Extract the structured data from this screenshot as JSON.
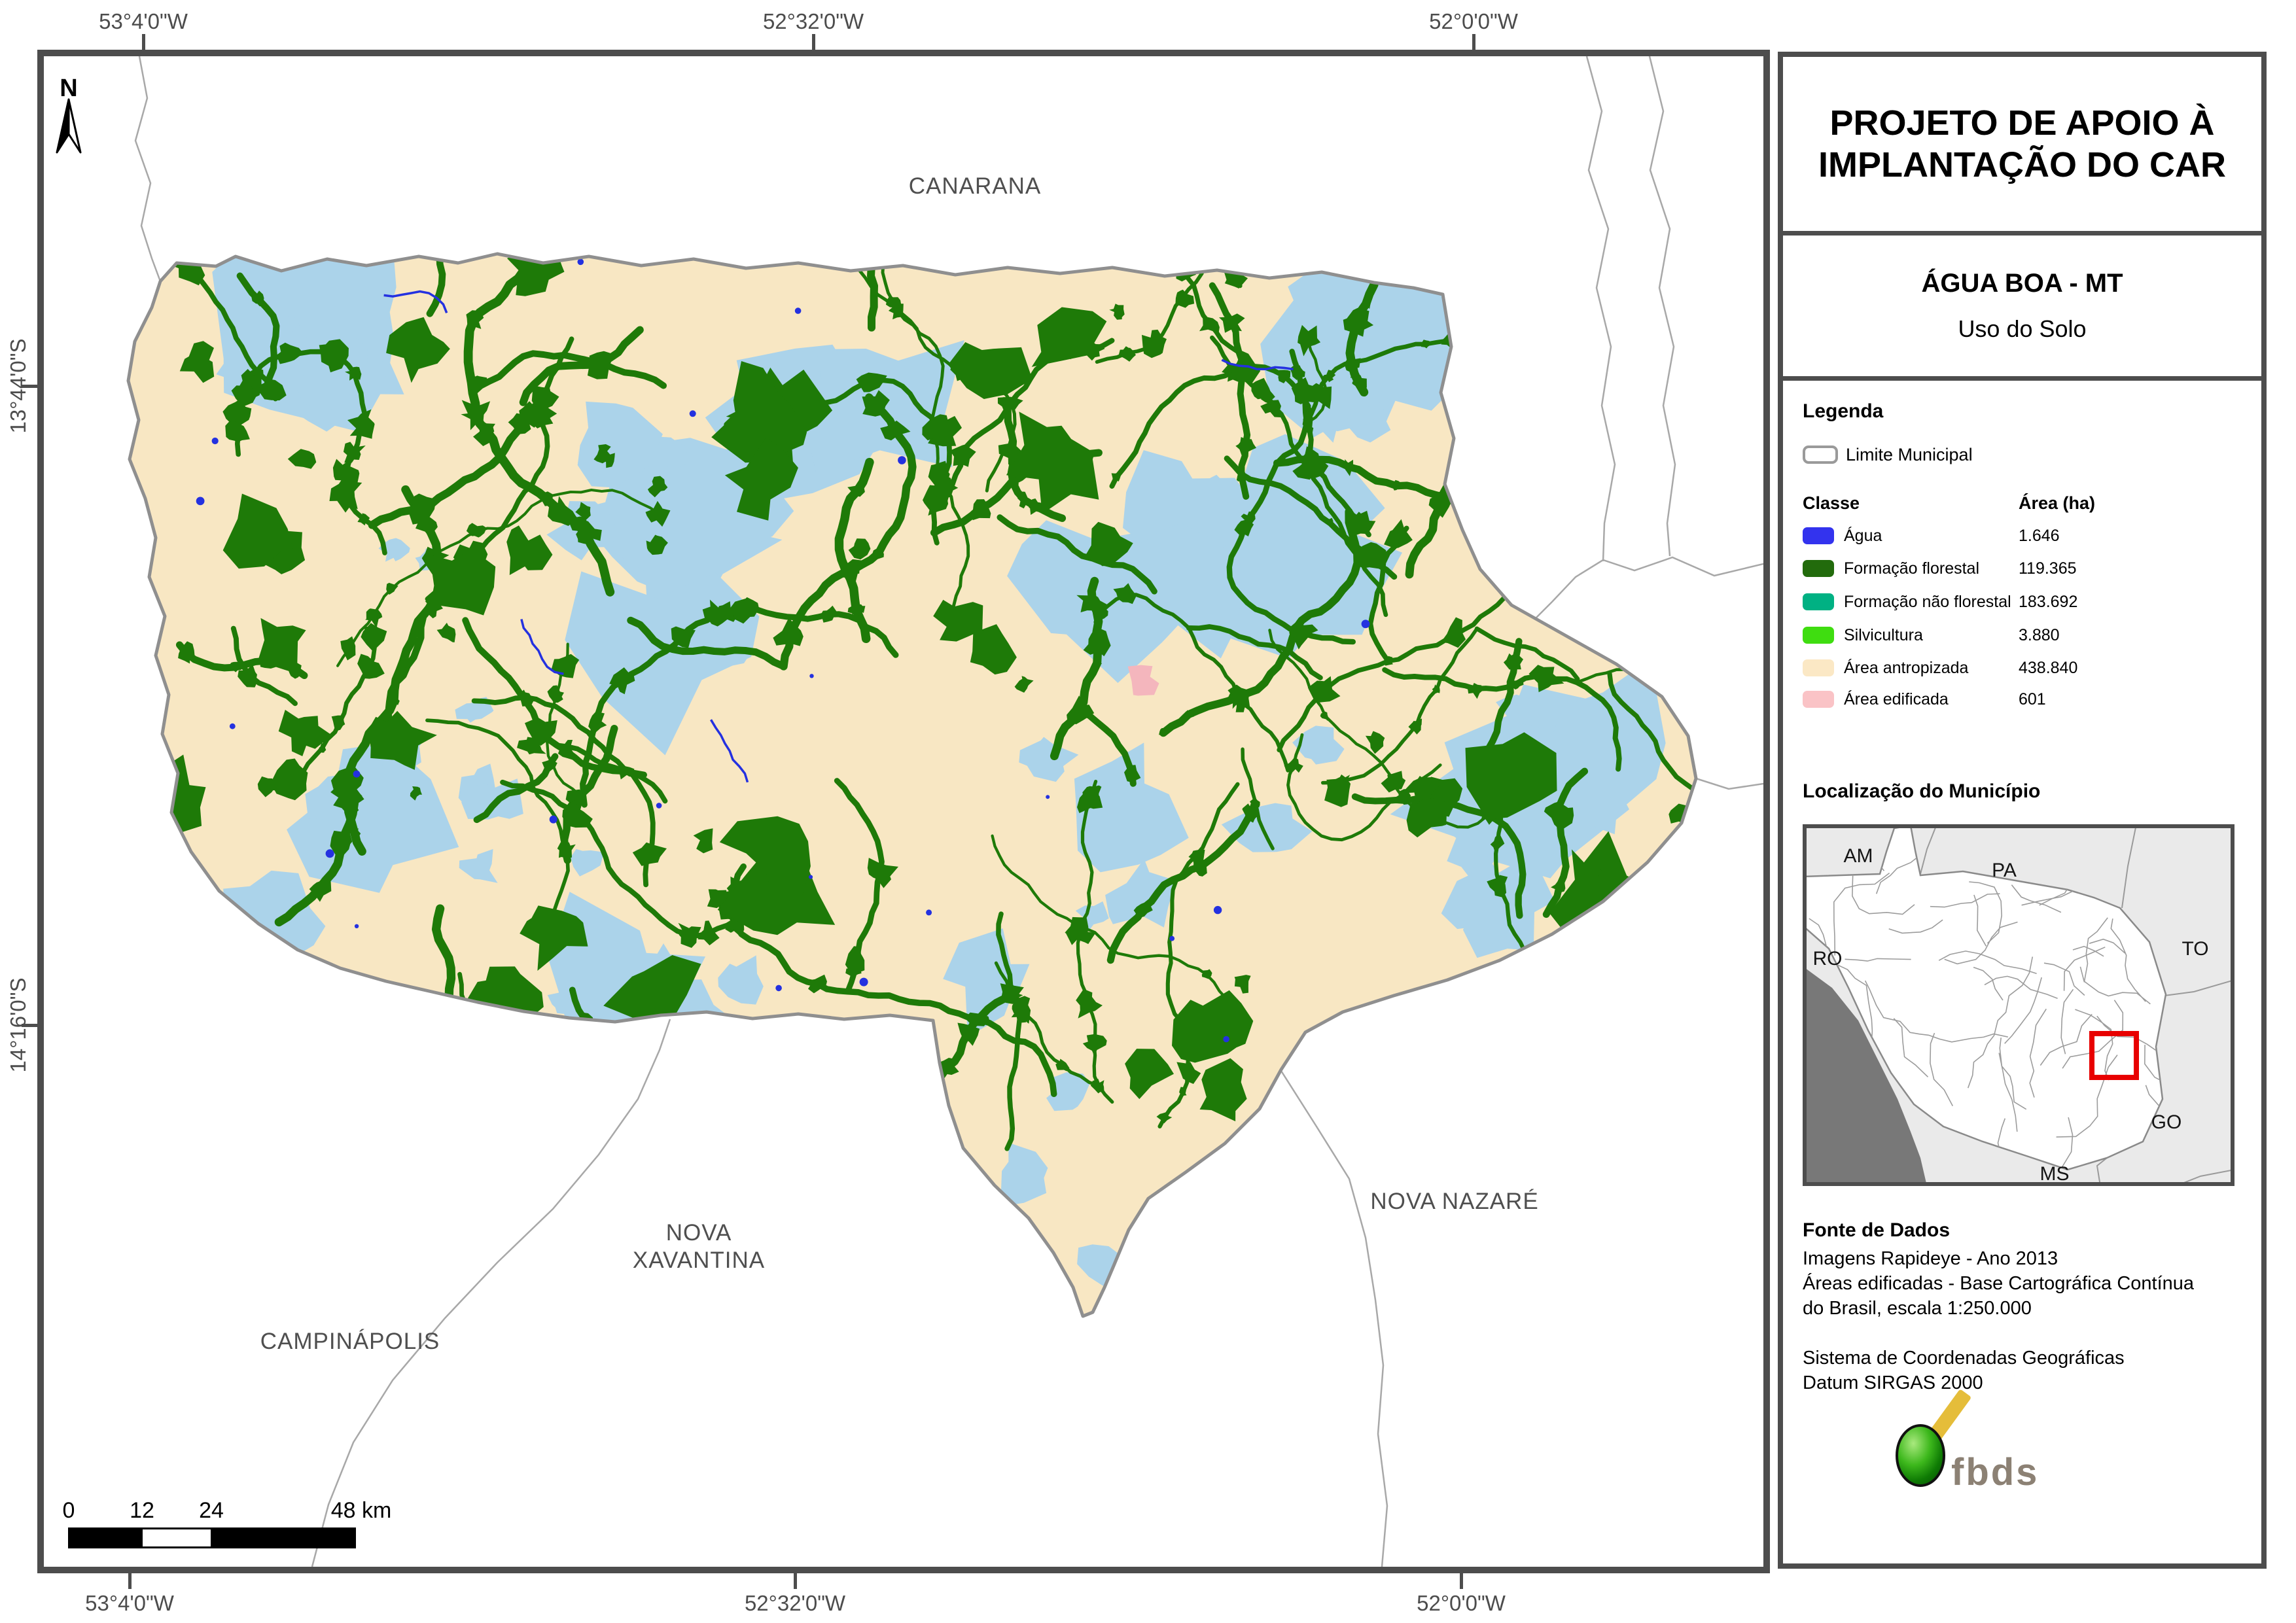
{
  "page": {
    "background": "#ffffff",
    "frame_color": "#4d4d4d"
  },
  "map": {
    "labels": {
      "canarana": "CANARANA",
      "nova_xavantina_line1": "NOVA",
      "nova_xavantina_line2": "XAVANTINA",
      "campinapolis": "CAMPINÁPOLIS",
      "nova_nazare": "NOVA NAZARÉ"
    },
    "north_label": "N",
    "coordinates": {
      "top": [
        "53°4'0\"W",
        "52°32'0\"W",
        "52°0'0\"W"
      ],
      "bottom": [
        "53°4'0\"W",
        "52°32'0\"W",
        "52°0'0\"W"
      ],
      "left": [
        "13°44'0\"S",
        "14°16'0\"S"
      ]
    },
    "scalebar_labels": [
      "0",
      "12",
      "24",
      "48 km"
    ],
    "colors": {
      "area_antropizada": "#f8e7c3",
      "formacao_florestal": "#1e7a08",
      "formacao_nao_florestal": "#abd3ea",
      "agua": "#2431e0",
      "area_edificada": "#f4b6bd",
      "municipal_boundary": "#8f8f8f",
      "neighbor_boundary": "#a8a8a8",
      "map_label": "#4f4f4f",
      "coordinate_label": "#4c4c4c"
    }
  },
  "panel": {
    "title_lines": [
      "PROJETO DE APOIO À",
      "IMPLANTAÇÃO DO CAR"
    ],
    "municipality": "ÁGUA BOA - MT",
    "map_theme": "Uso do Solo",
    "legend": {
      "heading": "Legenda",
      "limite_label": "Limite Municipal",
      "col_class": "Classe",
      "col_area": "Área (ha)",
      "classes": [
        {
          "name": "Água",
          "area": "1.646",
          "color": "#3333ee"
        },
        {
          "name": "Formação florestal",
          "area": "119.365",
          "color": "#226b0c"
        },
        {
          "name": "Formação não florestal",
          "area": "183.692",
          "color": "#00b183"
        },
        {
          "name": "Silvicultura",
          "area": "3.880",
          "color": "#3fdd10"
        },
        {
          "name": "Área antropizada",
          "area": "438.840",
          "color": "#fbe8c5"
        },
        {
          "name": "Área edificada",
          "area": "601",
          "color": "#fac3c6"
        }
      ]
    },
    "inset": {
      "heading": "Localização do Município",
      "states": [
        "AM",
        "PA",
        "TO",
        "RO",
        "GO",
        "MS"
      ],
      "highlight_color": "#e80000"
    },
    "source": {
      "heading": "Fonte de Dados",
      "lines": [
        "Imagens Rapideye - Ano 2013",
        "Áreas edificadas - Base Cartográfica Contínua",
        "do Brasil, escala 1:250.000",
        "",
        "Sistema de Coordenadas Geográficas",
        "Datum SIRGAS 2000"
      ]
    },
    "logo": {
      "text": "fbds",
      "ball_color": "#3db81c",
      "bar_color": "#e5bd3a",
      "text_color": "#8c8174"
    }
  }
}
